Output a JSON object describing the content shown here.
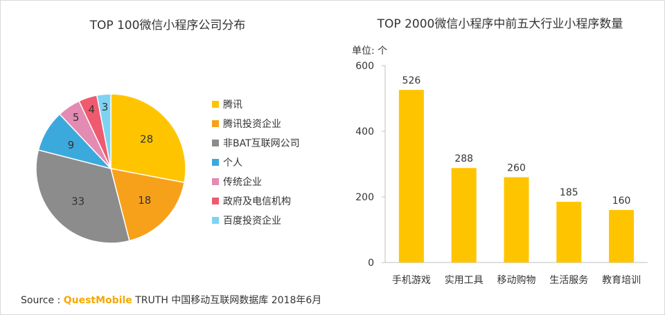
{
  "source": {
    "label": "Source :",
    "brand": "QuestMobile",
    "text": "TRUTH 中国移动互联网数据库 2018年6月"
  },
  "chart_data": [
    {
      "type": "pie",
      "title": "TOP 100微信小程序公司分布",
      "legend_position": "right",
      "slices": [
        {
          "label": "腾讯",
          "value": 28,
          "color": "#ffc400"
        },
        {
          "label": "腾讯投资企业",
          "value": 18,
          "color": "#f7a11a"
        },
        {
          "label": "非BAT互联网公司",
          "value": 33,
          "color": "#8c8c8c"
        },
        {
          "label": "个人",
          "value": 9,
          "color": "#3ca9dc"
        },
        {
          "label": "传统企业",
          "value": 5,
          "color": "#e38bb2"
        },
        {
          "label": "政府及电信机构",
          "value": 4,
          "color": "#ef5a6f"
        },
        {
          "label": "百度投资企业",
          "value": 3,
          "color": "#7fd3f2"
        }
      ]
    },
    {
      "type": "bar",
      "title": "TOP 2000微信小程序中前五大行业小程序数量",
      "ylabel": "单位: 个",
      "categories": [
        "手机游戏",
        "实用工具",
        "移动购物",
        "生活服务",
        "教育培训"
      ],
      "values": [
        526,
        288,
        260,
        185,
        160
      ],
      "ylim": [
        0,
        600
      ],
      "yticks": [
        0,
        200,
        400,
        600
      ],
      "bar_color": "#ffc400",
      "grid": false
    }
  ]
}
